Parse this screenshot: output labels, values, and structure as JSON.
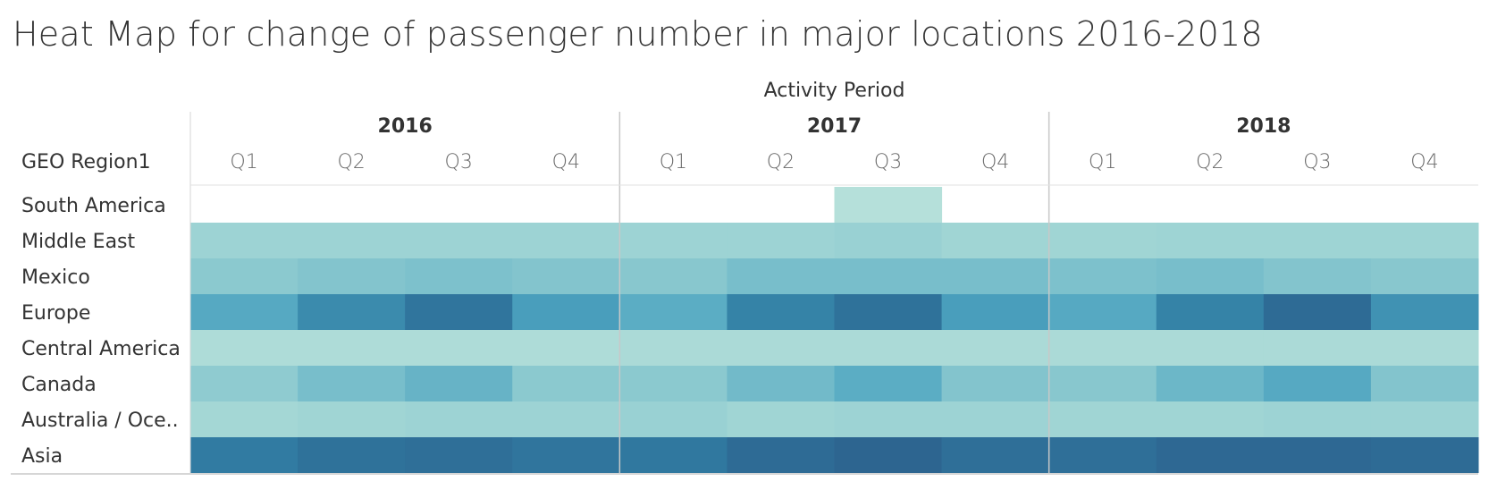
{
  "title": "Heat Map for change of passenger number in major locations 2016-2018",
  "chart_data": {
    "type": "heatmap",
    "title": "Heat Map for change of passenger number in major locations 2016-2018",
    "column_header": "Activity Period",
    "row_header": "GEO Region1",
    "years": [
      "2016",
      "2017",
      "2018"
    ],
    "quarters": [
      "Q1",
      "Q2",
      "Q3",
      "Q4"
    ],
    "rows": [
      "South America",
      "Middle East",
      "Mexico",
      "Europe",
      "Central America",
      "Canada",
      "Australia / Oce..",
      "Asia"
    ],
    "values": [
      [
        null,
        null,
        null,
        null,
        null,
        null,
        0.08,
        null,
        null,
        null,
        null,
        null
      ],
      [
        0.22,
        0.22,
        0.22,
        0.22,
        0.22,
        0.22,
        0.24,
        0.2,
        0.2,
        0.21,
        0.21,
        0.21
      ],
      [
        0.32,
        0.36,
        0.38,
        0.36,
        0.34,
        0.4,
        0.4,
        0.4,
        0.38,
        0.4,
        0.36,
        0.34
      ],
      [
        0.52,
        0.68,
        0.8,
        0.58,
        0.5,
        0.72,
        0.82,
        0.58,
        0.52,
        0.72,
        0.86,
        0.64
      ],
      [
        0.12,
        0.12,
        0.12,
        0.12,
        0.14,
        0.14,
        0.14,
        0.14,
        0.14,
        0.14,
        0.14,
        0.14
      ],
      [
        0.3,
        0.4,
        0.46,
        0.32,
        0.32,
        0.42,
        0.5,
        0.36,
        0.34,
        0.44,
        0.52,
        0.36
      ],
      [
        0.18,
        0.2,
        0.22,
        0.22,
        0.24,
        0.2,
        0.22,
        0.22,
        0.2,
        0.2,
        0.22,
        0.22
      ],
      [
        0.76,
        0.82,
        0.84,
        0.8,
        0.78,
        0.86,
        0.9,
        0.84,
        0.84,
        0.88,
        0.88,
        0.86
      ]
    ],
    "color_scale": [
      "#c3e8dd",
      "#2b5584"
    ],
    "grid": false
  }
}
